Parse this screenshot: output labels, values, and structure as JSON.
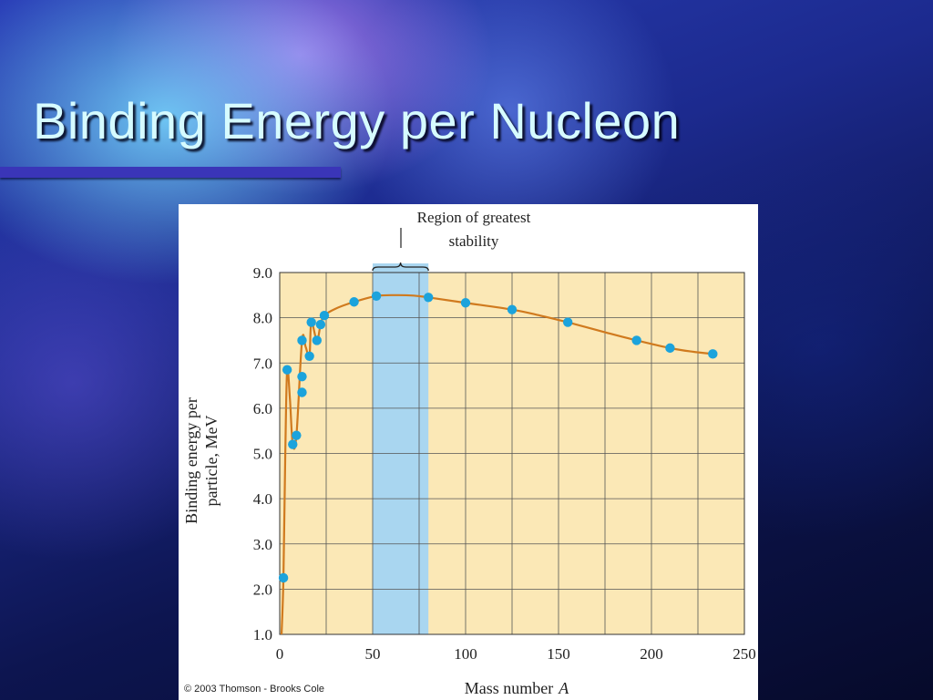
{
  "slide": {
    "title": "Binding Energy per Nucleon",
    "copyright": "© 2003 Thomson - Brooks Cole"
  },
  "colors": {
    "plot_background": "#fbe8b6",
    "stability_band": "#a9d6f0",
    "curve": "#d07a1e",
    "points": "#1ba3dc",
    "title_text": "#d6fbff",
    "title_rule": "#3a35b8"
  },
  "chart_data": {
    "type": "scatter",
    "title": "",
    "xlabel": "Mass number",
    "xlabel_var": "A",
    "ylabel_line1": "Binding energy per",
    "ylabel_line2": "particle, MeV",
    "xlim": [
      0,
      250
    ],
    "ylim": [
      1.0,
      9.0
    ],
    "x_ticks": [
      0,
      50,
      100,
      150,
      200,
      250
    ],
    "x_tick_labels": [
      "0",
      "50",
      "100",
      "150",
      "200",
      "250"
    ],
    "y_ticks": [
      1.0,
      2.0,
      3.0,
      4.0,
      5.0,
      6.0,
      7.0,
      8.0,
      9.0
    ],
    "y_tick_labels": [
      "1.0",
      "2.0",
      "3.0",
      "4.0",
      "5.0",
      "6.0",
      "7.0",
      "8.0",
      "9.0"
    ],
    "x_gridlines": [
      0,
      25,
      50,
      75,
      100,
      125,
      150,
      175,
      200,
      225,
      250
    ],
    "grid": true,
    "annotation": {
      "text_line1": "Region of greatest",
      "text_line2": "stability",
      "x_range": [
        50,
        80
      ]
    },
    "points": [
      {
        "x": 2,
        "y": 2.25
      },
      {
        "x": 4,
        "y": 6.85
      },
      {
        "x": 7,
        "y": 5.2
      },
      {
        "x": 9,
        "y": 5.4
      },
      {
        "x": 12,
        "y": 6.7
      },
      {
        "x": 12,
        "y": 6.35
      },
      {
        "x": 12,
        "y": 7.5
      },
      {
        "x": 16,
        "y": 7.15
      },
      {
        "x": 17,
        "y": 7.9
      },
      {
        "x": 20,
        "y": 7.5
      },
      {
        "x": 22,
        "y": 7.85
      },
      {
        "x": 24,
        "y": 8.05
      },
      {
        "x": 40,
        "y": 8.35
      },
      {
        "x": 52,
        "y": 8.48
      },
      {
        "x": 80,
        "y": 8.45
      },
      {
        "x": 100,
        "y": 8.33
      },
      {
        "x": 125,
        "y": 8.18
      },
      {
        "x": 155,
        "y": 7.9
      },
      {
        "x": 192,
        "y": 7.5
      },
      {
        "x": 210,
        "y": 7.33
      },
      {
        "x": 233,
        "y": 7.2
      }
    ],
    "curve": [
      {
        "x": 1,
        "y": 1.0
      },
      {
        "x": 2,
        "y": 2.25
      },
      {
        "x": 3,
        "y": 5.0
      },
      {
        "x": 4,
        "y": 6.85
      },
      {
        "x": 5.5,
        "y": 6.2
      },
      {
        "x": 7,
        "y": 5.2
      },
      {
        "x": 9,
        "y": 5.4
      },
      {
        "x": 12,
        "y": 7.5
      },
      {
        "x": 14,
        "y": 7.35
      },
      {
        "x": 16,
        "y": 7.15
      },
      {
        "x": 17,
        "y": 7.9
      },
      {
        "x": 20,
        "y": 7.5
      },
      {
        "x": 22,
        "y": 7.85
      },
      {
        "x": 24,
        "y": 8.05
      },
      {
        "x": 30,
        "y": 8.2
      },
      {
        "x": 40,
        "y": 8.35
      },
      {
        "x": 52,
        "y": 8.48
      },
      {
        "x": 62,
        "y": 8.5
      },
      {
        "x": 72,
        "y": 8.49
      },
      {
        "x": 80,
        "y": 8.45
      },
      {
        "x": 100,
        "y": 8.33
      },
      {
        "x": 125,
        "y": 8.18
      },
      {
        "x": 140,
        "y": 8.05
      },
      {
        "x": 155,
        "y": 7.9
      },
      {
        "x": 175,
        "y": 7.68
      },
      {
        "x": 192,
        "y": 7.5
      },
      {
        "x": 210,
        "y": 7.33
      },
      {
        "x": 222,
        "y": 7.25
      },
      {
        "x": 233,
        "y": 7.2
      }
    ]
  }
}
